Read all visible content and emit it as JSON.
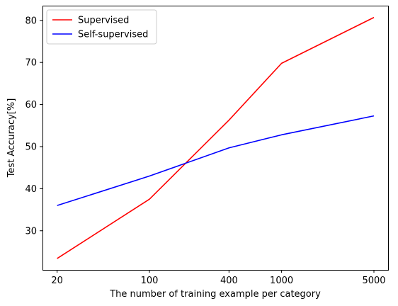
{
  "chart_data": {
    "type": "line",
    "title": "",
    "xlabel": "The number of training example per category",
    "ylabel": "Test Accuracy[%]",
    "xscale": "log",
    "x": [
      20,
      100,
      400,
      1000,
      5000
    ],
    "xticks": [
      "20",
      "100",
      "400",
      "1000",
      "5000"
    ],
    "yticks": [
      30,
      40,
      50,
      60,
      70,
      80
    ],
    "xlim": [
      15.5,
      6400
    ],
    "ylim": [
      20.7,
      83.5
    ],
    "grid": false,
    "legend_position": "top-left",
    "series": [
      {
        "name": "Supervised",
        "color": "#ff0000",
        "values": [
          23.4,
          37.5,
          56.3,
          69.8,
          80.7
        ]
      },
      {
        "name": "Self-supervised",
        "color": "#0000ff",
        "values": [
          36.0,
          43.0,
          49.7,
          52.8,
          57.3
        ]
      }
    ]
  }
}
